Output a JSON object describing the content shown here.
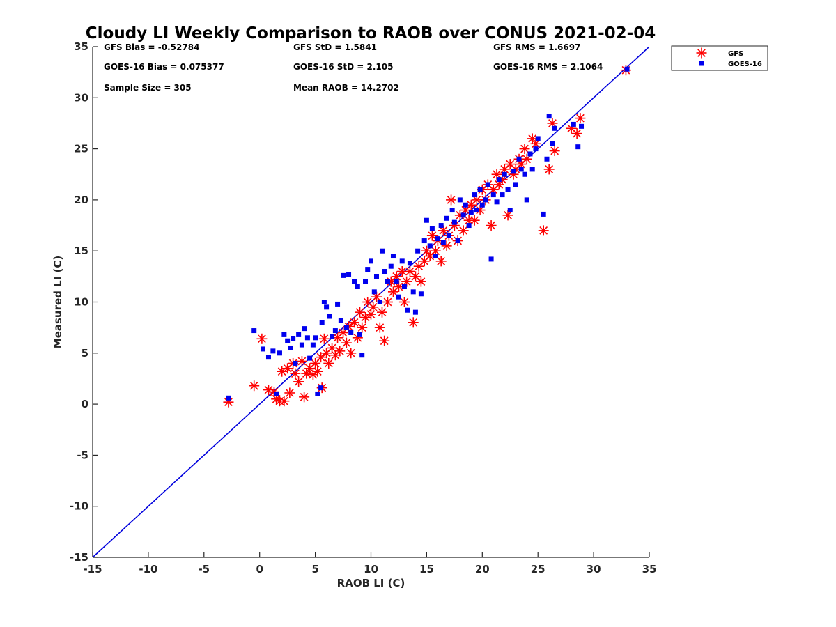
{
  "chart_data": {
    "type": "scatter",
    "title": "Cloudy LI Weekly Comparison to RAOB over CONUS 2021-02-04",
    "xlabel": "RAOB LI (C)",
    "ylabel": "Measured LI (C)",
    "xlim": [
      -15,
      35
    ],
    "ylim": [
      -15,
      35
    ],
    "xticks": [
      "-15",
      "-10",
      "-5",
      "0",
      "5",
      "10",
      "15",
      "20",
      "25",
      "30",
      "35"
    ],
    "yticks": [
      "-15",
      "-10",
      "-5",
      "0",
      "5",
      "10",
      "15",
      "20",
      "25",
      "30",
      "35"
    ],
    "grid": false,
    "legend_position": "outside-top-right",
    "reference_line": {
      "x": [
        -15,
        35
      ],
      "y": [
        -15,
        35
      ],
      "color": "#0000dd"
    },
    "stats": [
      {
        "text": "GFS Bias = -0.52784"
      },
      {
        "text": "GFS StD = 1.5841"
      },
      {
        "text": "GFS RMS = 1.6697"
      },
      {
        "text": "GOES-16 Bias = 0.075377"
      },
      {
        "text": "GOES-16 StD = 2.105"
      },
      {
        "text": "GOES-16 RMS = 2.1064"
      },
      {
        "text": "Sample Size = 305"
      },
      {
        "text": "Mean RAOB = 14.2702"
      }
    ],
    "series": [
      {
        "name": "GFS",
        "marker": "asterisk",
        "color": "#ff0000",
        "points": [
          [
            -2.8,
            0.2
          ],
          [
            -0.5,
            1.8
          ],
          [
            0.2,
            6.4
          ],
          [
            0.8,
            1.4
          ],
          [
            1.3,
            1.2
          ],
          [
            1.5,
            0.5
          ],
          [
            1.8,
            0.3
          ],
          [
            2.0,
            3.2
          ],
          [
            2.2,
            0.3
          ],
          [
            2.5,
            3.5
          ],
          [
            2.7,
            1.1
          ],
          [
            3.0,
            4.0
          ],
          [
            3.2,
            3.0
          ],
          [
            3.5,
            2.2
          ],
          [
            3.8,
            4.2
          ],
          [
            4.0,
            0.7
          ],
          [
            4.2,
            3.0
          ],
          [
            4.5,
            3.5
          ],
          [
            4.8,
            2.9
          ],
          [
            5.0,
            4.0
          ],
          [
            5.2,
            3.2
          ],
          [
            5.5,
            4.6
          ],
          [
            5.6,
            1.6
          ],
          [
            5.8,
            6.4
          ],
          [
            6.0,
            5.0
          ],
          [
            6.2,
            4.0
          ],
          [
            6.5,
            5.5
          ],
          [
            6.8,
            4.8
          ],
          [
            7.0,
            6.5
          ],
          [
            7.2,
            5.2
          ],
          [
            7.5,
            7.0
          ],
          [
            7.8,
            6.0
          ],
          [
            8.0,
            7.6
          ],
          [
            8.2,
            5.0
          ],
          [
            8.5,
            8.0
          ],
          [
            8.8,
            6.5
          ],
          [
            9.0,
            9.0
          ],
          [
            9.2,
            7.5
          ],
          [
            9.5,
            8.5
          ],
          [
            9.7,
            10.0
          ],
          [
            10.0,
            8.8
          ],
          [
            10.2,
            9.5
          ],
          [
            10.5,
            10.5
          ],
          [
            10.8,
            7.5
          ],
          [
            11.0,
            9.0
          ],
          [
            11.2,
            6.2
          ],
          [
            11.5,
            10.0
          ],
          [
            11.8,
            12.0
          ],
          [
            12.0,
            11.0
          ],
          [
            12.3,
            12.5
          ],
          [
            12.5,
            11.5
          ],
          [
            12.8,
            13.0
          ],
          [
            13.0,
            10.0
          ],
          [
            13.2,
            12.0
          ],
          [
            13.5,
            13.0
          ],
          [
            13.8,
            8.0
          ],
          [
            14.0,
            12.5
          ],
          [
            14.3,
            13.5
          ],
          [
            14.5,
            12.0
          ],
          [
            14.8,
            14.0
          ],
          [
            15.0,
            15.0
          ],
          [
            15.3,
            14.5
          ],
          [
            15.5,
            16.5
          ],
          [
            15.8,
            15.0
          ],
          [
            16.0,
            16.0
          ],
          [
            16.3,
            14.0
          ],
          [
            16.5,
            17.0
          ],
          [
            16.8,
            15.5
          ],
          [
            17.0,
            16.5
          ],
          [
            17.2,
            20.0
          ],
          [
            17.5,
            17.5
          ],
          [
            17.8,
            16.0
          ],
          [
            18.0,
            18.5
          ],
          [
            18.3,
            17.0
          ],
          [
            18.5,
            19.0
          ],
          [
            18.8,
            18.0
          ],
          [
            19.0,
            19.5
          ],
          [
            19.3,
            18.0
          ],
          [
            19.5,
            20.0
          ],
          [
            19.8,
            19.0
          ],
          [
            20.0,
            21.0
          ],
          [
            20.3,
            20.0
          ],
          [
            20.5,
            21.5
          ],
          [
            20.8,
            17.5
          ],
          [
            21.0,
            21.0
          ],
          [
            21.3,
            22.5
          ],
          [
            21.5,
            21.5
          ],
          [
            21.8,
            22.0
          ],
          [
            22.0,
            23.0
          ],
          [
            22.3,
            18.5
          ],
          [
            22.5,
            23.5
          ],
          [
            22.8,
            22.5
          ],
          [
            23.0,
            23.0
          ],
          [
            23.3,
            24.0
          ],
          [
            23.5,
            23.5
          ],
          [
            23.8,
            25.0
          ],
          [
            24.0,
            24.0
          ],
          [
            24.5,
            26.0
          ],
          [
            24.8,
            25.5
          ],
          [
            25.5,
            17.0
          ],
          [
            26.0,
            23.0
          ],
          [
            26.3,
            27.5
          ],
          [
            26.5,
            24.8
          ],
          [
            28.0,
            27.0
          ],
          [
            28.5,
            26.5
          ],
          [
            28.8,
            28.0
          ],
          [
            32.9,
            32.7
          ]
        ]
      },
      {
        "name": "GOES-16",
        "marker": "square",
        "color": "#0000ee",
        "points": [
          [
            -2.8,
            0.6
          ],
          [
            -0.5,
            7.2
          ],
          [
            0.3,
            5.4
          ],
          [
            0.8,
            4.6
          ],
          [
            1.2,
            5.2
          ],
          [
            1.5,
            1.0
          ],
          [
            1.8,
            5.0
          ],
          [
            2.2,
            6.8
          ],
          [
            2.5,
            6.2
          ],
          [
            2.8,
            5.5
          ],
          [
            3.0,
            6.4
          ],
          [
            3.2,
            4.0
          ],
          [
            3.5,
            6.8
          ],
          [
            3.8,
            5.8
          ],
          [
            4.0,
            7.4
          ],
          [
            4.3,
            6.5
          ],
          [
            4.5,
            4.5
          ],
          [
            4.8,
            5.8
          ],
          [
            5.0,
            6.5
          ],
          [
            5.2,
            1.0
          ],
          [
            5.5,
            1.6
          ],
          [
            5.6,
            8.0
          ],
          [
            5.8,
            10.0
          ],
          [
            6.0,
            9.5
          ],
          [
            6.3,
            8.6
          ],
          [
            6.5,
            6.6
          ],
          [
            6.8,
            7.2
          ],
          [
            7.0,
            9.8
          ],
          [
            7.3,
            8.2
          ],
          [
            7.5,
            12.6
          ],
          [
            7.8,
            7.5
          ],
          [
            8.0,
            12.7
          ],
          [
            8.2,
            7.0
          ],
          [
            8.5,
            12.0
          ],
          [
            8.8,
            11.5
          ],
          [
            9.0,
            6.8
          ],
          [
            9.2,
            4.8
          ],
          [
            9.5,
            12.0
          ],
          [
            9.7,
            13.2
          ],
          [
            10.0,
            14.0
          ],
          [
            10.3,
            11.0
          ],
          [
            10.5,
            12.5
          ],
          [
            10.8,
            10.0
          ],
          [
            11.0,
            15.0
          ],
          [
            11.2,
            13.0
          ],
          [
            11.5,
            12.0
          ],
          [
            11.8,
            13.5
          ],
          [
            12.0,
            14.5
          ],
          [
            12.3,
            12.0
          ],
          [
            12.5,
            10.5
          ],
          [
            12.8,
            14.0
          ],
          [
            13.0,
            11.5
          ],
          [
            13.3,
            9.2
          ],
          [
            13.5,
            13.8
          ],
          [
            13.8,
            11.0
          ],
          [
            14.0,
            9.0
          ],
          [
            14.2,
            15.0
          ],
          [
            14.5,
            10.8
          ],
          [
            14.8,
            16.0
          ],
          [
            15.0,
            18.0
          ],
          [
            15.3,
            15.5
          ],
          [
            15.5,
            17.2
          ],
          [
            15.8,
            14.5
          ],
          [
            16.0,
            16.2
          ],
          [
            16.3,
            17.5
          ],
          [
            16.5,
            15.8
          ],
          [
            16.8,
            18.2
          ],
          [
            17.0,
            16.5
          ],
          [
            17.3,
            19.0
          ],
          [
            17.5,
            17.8
          ],
          [
            17.8,
            16.0
          ],
          [
            18.0,
            20.0
          ],
          [
            18.3,
            18.5
          ],
          [
            18.5,
            19.5
          ],
          [
            18.8,
            17.5
          ],
          [
            19.0,
            18.8
          ],
          [
            19.3,
            20.5
          ],
          [
            19.5,
            19.0
          ],
          [
            19.8,
            21.0
          ],
          [
            20.0,
            19.5
          ],
          [
            20.3,
            20.0
          ],
          [
            20.5,
            21.5
          ],
          [
            20.8,
            14.2
          ],
          [
            21.0,
            20.5
          ],
          [
            21.3,
            19.8
          ],
          [
            21.5,
            22.0
          ],
          [
            21.8,
            20.5
          ],
          [
            22.0,
            22.5
          ],
          [
            22.3,
            21.0
          ],
          [
            22.5,
            19.0
          ],
          [
            22.8,
            22.8
          ],
          [
            23.0,
            21.5
          ],
          [
            23.3,
            24.0
          ],
          [
            23.5,
            23.0
          ],
          [
            23.8,
            22.5
          ],
          [
            24.0,
            20.0
          ],
          [
            24.3,
            24.5
          ],
          [
            24.5,
            23.0
          ],
          [
            24.8,
            25.0
          ],
          [
            25.0,
            26.0
          ],
          [
            25.5,
            18.6
          ],
          [
            25.8,
            24.0
          ],
          [
            26.0,
            28.2
          ],
          [
            26.3,
            25.5
          ],
          [
            26.5,
            27.0
          ],
          [
            28.2,
            27.4
          ],
          [
            28.6,
            25.2
          ],
          [
            28.9,
            27.2
          ],
          [
            33.0,
            32.8
          ]
        ]
      }
    ]
  }
}
